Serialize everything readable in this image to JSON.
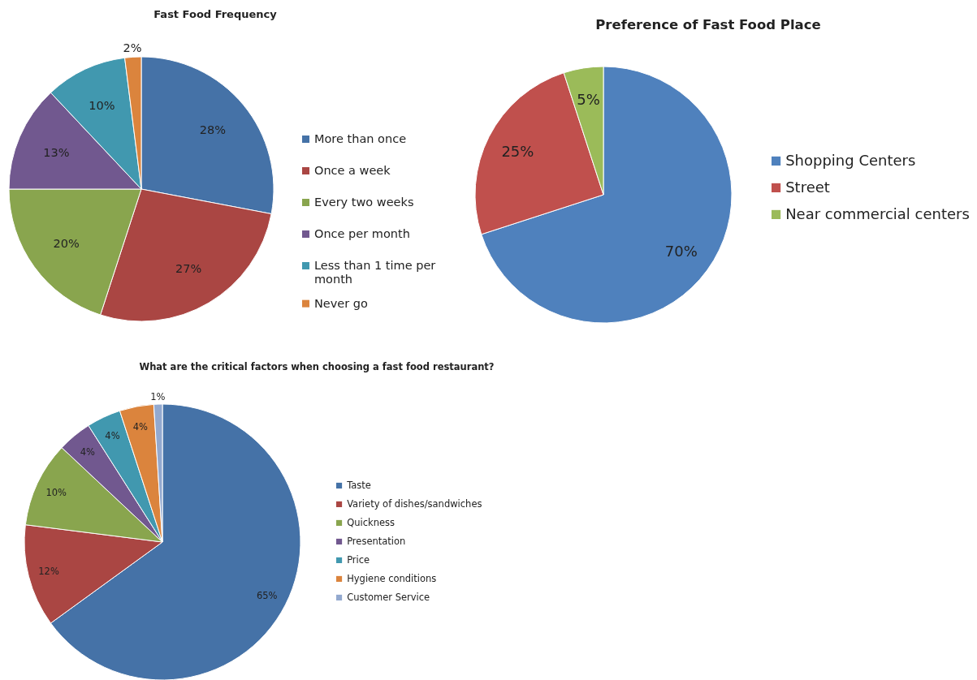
{
  "chart_data": [
    {
      "type": "pie",
      "title": "Fast Food Frequency",
      "categories": [
        "More than once",
        "Once a week",
        "Every two weeks",
        "Once per month",
        "Less than 1 time per month",
        "Never go"
      ],
      "values": [
        28,
        27,
        20,
        13,
        10,
        2
      ],
      "value_labels": [
        "28%",
        "27%",
        "20%",
        "13%",
        "10%",
        "2%"
      ],
      "colors": [
        "#4572a7",
        "#aa4643",
        "#89a54e",
        "#71588f",
        "#4198af",
        "#db843d"
      ],
      "legend": "right"
    },
    {
      "type": "pie",
      "title": "Preference of Fast Food Place",
      "categories": [
        "Shopping Centers",
        "Street",
        "Near commercial centers"
      ],
      "values": [
        70,
        25,
        5
      ],
      "value_labels": [
        "70%",
        "25%",
        "5%"
      ],
      "colors": [
        "#4f81bd",
        "#c0504d",
        "#9bbb59"
      ],
      "legend": "right"
    },
    {
      "type": "pie",
      "title": "What are the critical factors when choosing a fast food restaurant?",
      "categories": [
        "Taste",
        "Variety of dishes/sandwiches",
        "Quickness",
        "Presentation",
        "Price",
        "Hygiene conditions",
        "Customer Service"
      ],
      "values": [
        65,
        12,
        10,
        4,
        4,
        4,
        1
      ],
      "value_labels": [
        "65%",
        "12%",
        "10%",
        "4%",
        "4%",
        "4%",
        "1%"
      ],
      "colors": [
        "#4572a7",
        "#aa4643",
        "#89a54e",
        "#71588f",
        "#4198af",
        "#db843d",
        "#93a9cf"
      ],
      "legend": "right"
    }
  ]
}
